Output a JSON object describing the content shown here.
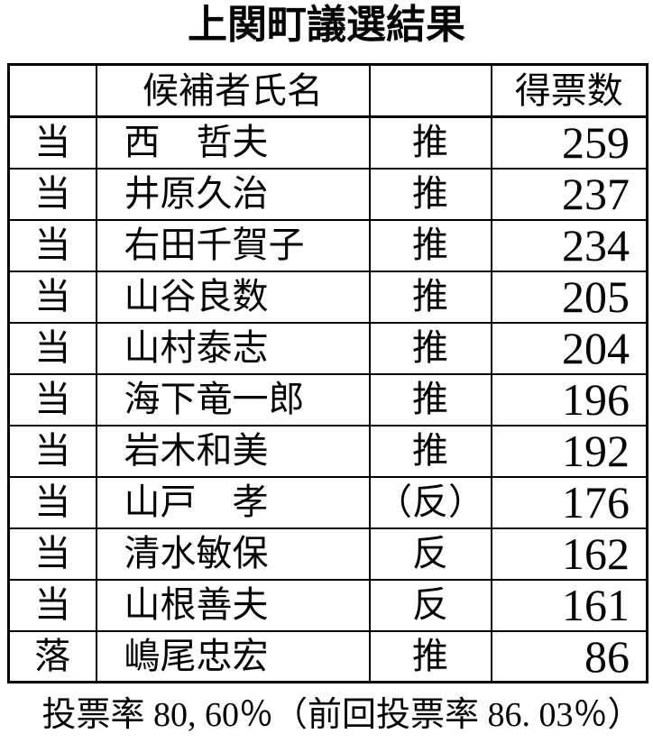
{
  "page": {
    "title": "上関町議選結果",
    "footer": "投票率 80, 60％（前回投票率 86. 03％）"
  },
  "table": {
    "headers": {
      "status": "",
      "name": "候補者氏名",
      "endorsement": "",
      "votes": "得票数"
    },
    "rows": [
      {
        "status": "当",
        "name": "西　哲夫",
        "endorsement": "推",
        "votes": "259"
      },
      {
        "status": "当",
        "name": "井原久治",
        "endorsement": "推",
        "votes": "237"
      },
      {
        "status": "当",
        "name": "右田千賀子",
        "endorsement": "推",
        "votes": "234"
      },
      {
        "status": "当",
        "name": "山谷良数",
        "endorsement": "推",
        "votes": "205"
      },
      {
        "status": "当",
        "name": "山村泰志",
        "endorsement": "推",
        "votes": "204"
      },
      {
        "status": "当",
        "name": "海下竜一郎",
        "endorsement": "推",
        "votes": "196"
      },
      {
        "status": "当",
        "name": "岩木和美",
        "endorsement": "推",
        "votes": "192"
      },
      {
        "status": "当",
        "name": "山戸　孝",
        "endorsement": "（反）",
        "votes": "176"
      },
      {
        "status": "当",
        "name": "清水敏保",
        "endorsement": "反",
        "votes": "162"
      },
      {
        "status": "当",
        "name": "山根善夫",
        "endorsement": "反",
        "votes": "161"
      },
      {
        "status": "落",
        "name": "嶋尾忠宏",
        "endorsement": "推",
        "votes": "86"
      }
    ]
  }
}
